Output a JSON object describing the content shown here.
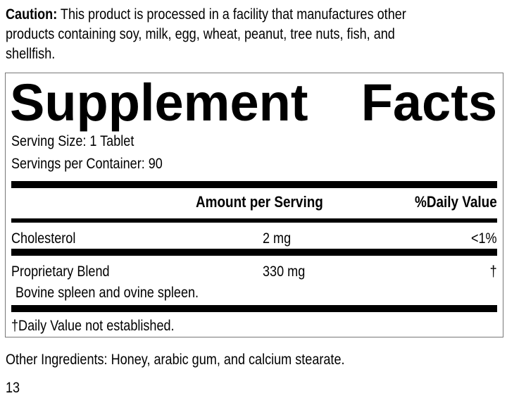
{
  "caution": {
    "label": "Caution:",
    "lines": [
      " This product is processed in a facility that manufactures other",
      "products containing soy, milk, egg, wheat, peanut, tree nuts, fish, and",
      "shellfish."
    ]
  },
  "facts": {
    "title_left": "Supplement",
    "title_right": "Facts",
    "serving_size": "Serving Size: 1 Tablet",
    "servings_per_container": "Servings per Container: 90",
    "header": {
      "amount": "Amount per Serving",
      "daily_value": "%Daily Value"
    },
    "rows": [
      {
        "name": "Cholesterol",
        "amount": "2 mg",
        "dv": "<1%"
      },
      {
        "name": "Proprietary Blend",
        "amount": "330 mg",
        "dv": "†",
        "sub": "Bovine spleen and ovine spleen."
      }
    ],
    "footnote": "†Daily Value not established."
  },
  "other_ingredients": "Other Ingredients: Honey, arabic gum, and calcium stearate.",
  "page_number": "13"
}
